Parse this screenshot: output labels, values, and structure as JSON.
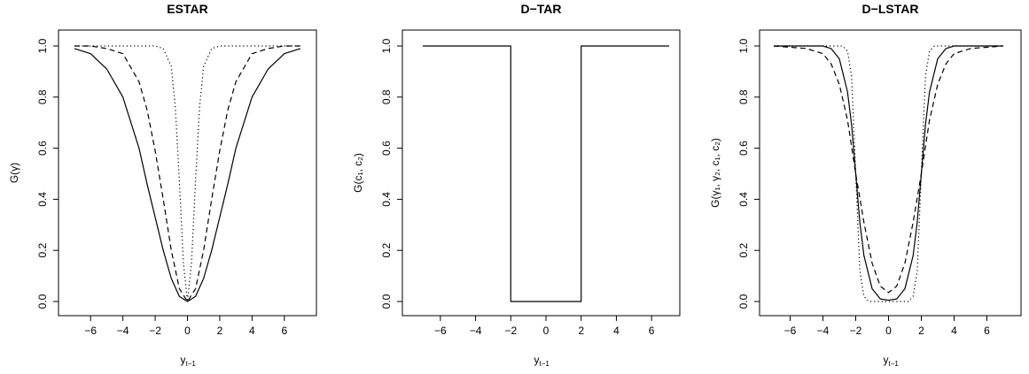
{
  "chart_data": [
    {
      "type": "line",
      "title": "ESTAR",
      "xlabel": "y",
      "xlabel_sub": "t−1",
      "ylabel": "G(γ)",
      "xlim": [
        -7,
        7
      ],
      "ylim": [
        0,
        1
      ],
      "xticks": [
        -6,
        -4,
        -2,
        0,
        2,
        4,
        6
      ],
      "xtick_labels": [
        "−6",
        "−4",
        "−2",
        "0",
        "2",
        "4",
        "6"
      ],
      "yticks": [
        0,
        0.2,
        0.4,
        0.6,
        0.8,
        1
      ],
      "ytick_labels": [
        "0.0",
        "0.2",
        "0.4",
        "0.6",
        "0.8",
        "1.0"
      ],
      "series": [
        {
          "line": "solid",
          "x": [
            -7,
            -6,
            -5,
            -4,
            -3,
            -2.5,
            -2,
            -1.5,
            -1,
            -0.5,
            0,
            0.5,
            1,
            1.5,
            2,
            2.5,
            3,
            4,
            5,
            6,
            7
          ],
          "y": [
            0.99,
            0.97,
            0.91,
            0.8,
            0.6,
            0.46,
            0.33,
            0.2,
            0.09,
            0.02,
            0,
            0.02,
            0.09,
            0.2,
            0.33,
            0.46,
            0.6,
            0.8,
            0.91,
            0.97,
            0.99
          ]
        },
        {
          "line": "dashed",
          "x": [
            -7,
            -6,
            -5,
            -4,
            -3,
            -2.5,
            -2,
            -1.5,
            -1,
            -0.5,
            0,
            0.5,
            1,
            1.5,
            2,
            2.5,
            3,
            4,
            5,
            6,
            7
          ],
          "y": [
            1,
            1,
            0.99,
            0.97,
            0.86,
            0.75,
            0.59,
            0.4,
            0.2,
            0.05,
            0,
            0.05,
            0.2,
            0.4,
            0.59,
            0.75,
            0.86,
            0.97,
            0.99,
            1,
            1
          ]
        },
        {
          "line": "dotted",
          "x": [
            -7,
            -3,
            -2,
            -1.5,
            -1,
            -0.75,
            -0.5,
            -0.25,
            0,
            0.25,
            0.5,
            0.75,
            1,
            1.5,
            2,
            3,
            7
          ],
          "y": [
            1,
            1,
            1,
            0.99,
            0.92,
            0.76,
            0.47,
            0.15,
            0,
            0.15,
            0.47,
            0.76,
            0.92,
            0.99,
            1,
            1,
            1
          ]
        }
      ]
    },
    {
      "type": "line",
      "title": "D−TAR",
      "xlabel": "y",
      "xlabel_sub": "t−1",
      "ylabel": "G(c₁, c₂)",
      "xlim": [
        -7,
        7
      ],
      "ylim": [
        0,
        1
      ],
      "xticks": [
        -6,
        -4,
        -2,
        0,
        2,
        4,
        6
      ],
      "xtick_labels": [
        "−6",
        "−4",
        "−2",
        "0",
        "2",
        "4",
        "6"
      ],
      "yticks": [
        0,
        0.2,
        0.4,
        0.6,
        0.8,
        1
      ],
      "ytick_labels": [
        "0.0",
        "0.2",
        "0.4",
        "0.6",
        "0.8",
        "1.0"
      ],
      "series": [
        {
          "line": "solid",
          "x": [
            -7,
            -2,
            -2,
            2,
            2,
            7
          ],
          "y": [
            1,
            1,
            0,
            0,
            1,
            1
          ]
        }
      ]
    },
    {
      "type": "line",
      "title": "D−LSTAR",
      "xlabel": "y",
      "xlabel_sub": "t−1",
      "ylabel": "G(γ₁, γ₂, c₁, c₂)",
      "xlim": [
        -7,
        7
      ],
      "ylim": [
        0,
        1
      ],
      "xticks": [
        -6,
        -4,
        -2,
        0,
        2,
        4,
        6
      ],
      "xtick_labels": [
        "−6",
        "−4",
        "−2",
        "0",
        "2",
        "4",
        "6"
      ],
      "yticks": [
        0,
        0.2,
        0.4,
        0.6,
        0.8,
        1
      ],
      "ytick_labels": [
        "0.0",
        "0.2",
        "0.4",
        "0.6",
        "0.8",
        "1.0"
      ],
      "series": [
        {
          "line": "solid",
          "x": [
            -7,
            -4,
            -3.5,
            -3,
            -2.5,
            -2.25,
            -2,
            -1.75,
            -1.5,
            -1,
            -0.5,
            0,
            0.5,
            1,
            1.5,
            1.75,
            2,
            2.25,
            2.5,
            3,
            3.5,
            4,
            7
          ],
          "y": [
            1,
            1,
            0.99,
            0.95,
            0.82,
            0.69,
            0.5,
            0.31,
            0.18,
            0.05,
            0.01,
            0.005,
            0.01,
            0.05,
            0.18,
            0.31,
            0.5,
            0.69,
            0.82,
            0.95,
            0.99,
            1,
            1
          ]
        },
        {
          "line": "dashed",
          "x": [
            -7,
            -5,
            -4,
            -3.5,
            -3,
            -2.5,
            -2,
            -1.5,
            -1,
            -0.5,
            0,
            0.5,
            1,
            1.5,
            2,
            2.5,
            3,
            3.5,
            4,
            5,
            7
          ],
          "y": [
            1,
            0.99,
            0.97,
            0.93,
            0.85,
            0.71,
            0.5,
            0.31,
            0.15,
            0.06,
            0.035,
            0.06,
            0.15,
            0.31,
            0.5,
            0.71,
            0.85,
            0.93,
            0.97,
            0.99,
            1
          ]
        },
        {
          "line": "dotted",
          "x": [
            -7,
            -2.8,
            -2.5,
            -2.25,
            -2,
            -1.75,
            -1.5,
            -1.2,
            1.2,
            1.5,
            1.75,
            2,
            2.25,
            2.5,
            2.8,
            7
          ],
          "y": [
            1,
            1,
            0.98,
            0.88,
            0.5,
            0.12,
            0.02,
            0,
            0,
            0.02,
            0.12,
            0.5,
            0.88,
            0.98,
            1,
            1
          ]
        }
      ]
    }
  ]
}
